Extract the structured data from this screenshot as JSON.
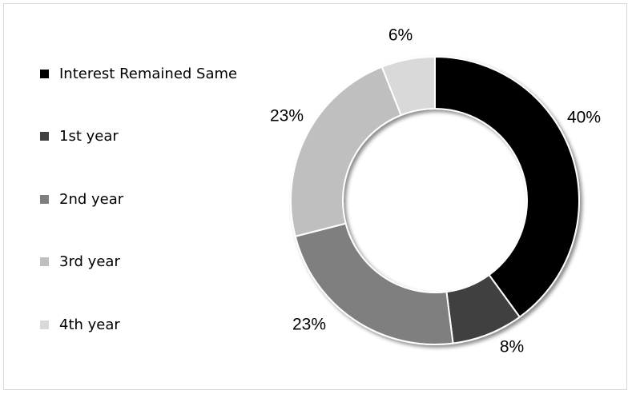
{
  "chart_data": {
    "type": "pie",
    "variant": "donut",
    "title": "",
    "legend_position": "left",
    "series": [
      {
        "name": "Interest Remained Same",
        "value": 40,
        "label": "40%",
        "color": "#000000"
      },
      {
        "name": "1st year",
        "value": 8,
        "label": "8%",
        "color": "#404040"
      },
      {
        "name": "2nd year",
        "value": 23,
        "label": "23%",
        "color": "#7f7f7f"
      },
      {
        "name": "3rd year",
        "value": 23,
        "label": "23%",
        "color": "#bfbfbf"
      },
      {
        "name": "4th year",
        "value": 6,
        "label": "6%",
        "color": "#d9d9d9"
      }
    ]
  }
}
